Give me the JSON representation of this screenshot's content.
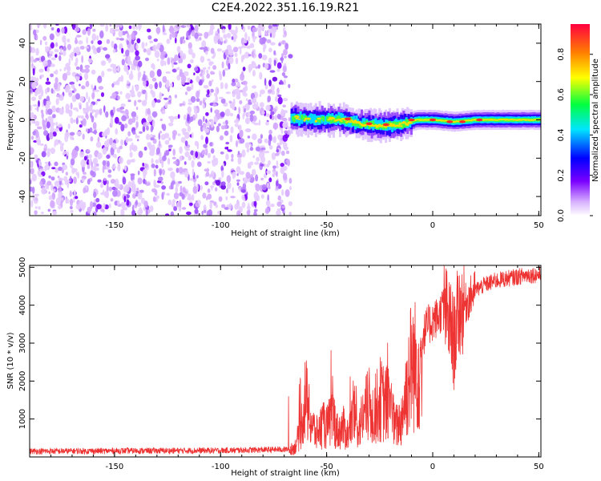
{
  "title": "C2E4.2022.351.16.19.R21",
  "chart_data": [
    {
      "type": "heatmap",
      "xlabel": "Height of straight line (km)",
      "ylabel": "Frequency (Hz)",
      "xlim": [
        -190,
        51
      ],
      "ylim": [
        -50,
        50
      ],
      "xticks": [
        -150,
        -100,
        -50,
        0,
        50
      ],
      "yticks": [
        -40,
        -20,
        0,
        20,
        40
      ],
      "noise_region_x": [
        -190,
        -67
      ],
      "signal_region_x": [
        -67,
        51
      ],
      "signal_center_hz": [
        {
          "x": -67,
          "y": 1
        },
        {
          "x": -55,
          "y": 0
        },
        {
          "x": -45,
          "y": 0.5
        },
        {
          "x": -35,
          "y": -2
        },
        {
          "x": -25,
          "y": -3
        },
        {
          "x": -15,
          "y": -2.5
        },
        {
          "x": -8,
          "y": 0
        },
        {
          "x": 0,
          "y": 0
        },
        {
          "x": 10,
          "y": -1
        },
        {
          "x": 20,
          "y": 0
        },
        {
          "x": 35,
          "y": 0
        },
        {
          "x": 51,
          "y": 0
        }
      ],
      "colorbar": {
        "label": "Normalized spectral amplitude",
        "range": [
          0.0,
          0.95
        ],
        "ticks": [
          "0.0",
          "0.2",
          "0.4",
          "0.6",
          "0.8"
        ],
        "colors": [
          "#ffffff",
          "#d9b3ff",
          "#7a00ff",
          "#0000ff",
          "#00e5ff",
          "#00ff40",
          "#ffff00",
          "#ff8000",
          "#ff0040"
        ]
      }
    },
    {
      "type": "line",
      "xlabel": "Height of straight line (km)",
      "ylabel": "SNR (10 * v/v)",
      "xlim": [
        -190,
        51
      ],
      "ylim": [
        0,
        5050
      ],
      "xticks": [
        -150,
        -100,
        -50,
        0,
        50
      ],
      "yticks": [
        1000,
        2000,
        3000,
        4000,
        5000
      ],
      "series_color": "#ee3333",
      "series": [
        {
          "x": [
            -190,
            -150,
            -100,
            -68,
            -65,
            -62,
            -60,
            -58,
            -55,
            -52,
            -50,
            -47,
            -45,
            -42,
            -40,
            -37,
            -35,
            -32,
            -30,
            -28,
            -25,
            -22,
            -20,
            -18,
            -15,
            -12,
            -10,
            -8,
            -5,
            -3,
            0,
            3,
            5,
            8,
            10,
            12,
            15,
            20,
            25,
            30,
            35,
            40,
            45,
            51
          ],
          "y": [
            150,
            160,
            170,
            200,
            300,
            900,
            1900,
            1200,
            700,
            1000,
            900,
            1300,
            800,
            900,
            700,
            1300,
            900,
            1400,
            1600,
            1300,
            1800,
            1600,
            1900,
            900,
            1100,
            2200,
            2900,
            2800,
            3100,
            3400,
            3600,
            3700,
            4000,
            3500,
            3000,
            3800,
            4000,
            4400,
            4550,
            4650,
            4700,
            4750,
            4800,
            4800
          ]
        }
      ]
    }
  ]
}
